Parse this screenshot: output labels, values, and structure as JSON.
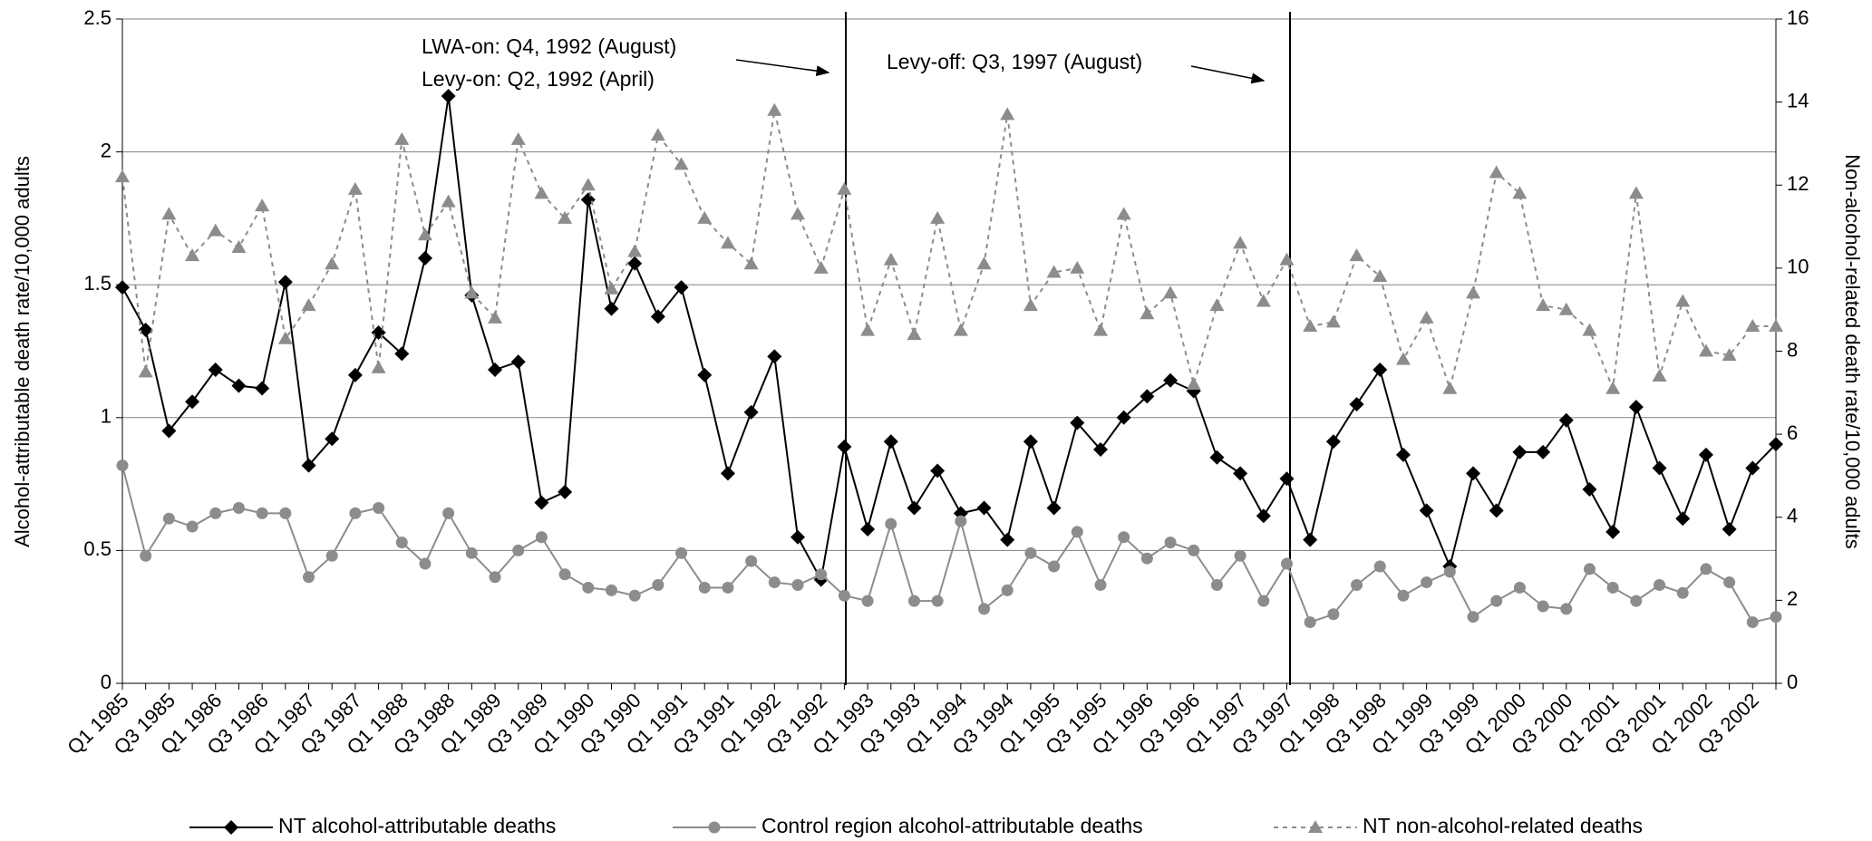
{
  "chart_data": {
    "type": "line",
    "y_label": "Alcohol-attributable death rate/10,000 adults",
    "y2_label": "Non-alcohol-related death rate/10,000 adults",
    "annotations": [
      "LWA-on: Q4, 1992 (August)",
      "Levy-on: Q2, 1992 (April)",
      "Levy-off: Q3, 1997 (August)"
    ],
    "categories": [
      "Q1 1985",
      null,
      "Q3 1985",
      null,
      "Q1 1986",
      null,
      "Q3 1986",
      null,
      "Q1 1987",
      null,
      "Q3 1987",
      null,
      "Q1 1988",
      null,
      "Q3 1988",
      null,
      "Q1 1989",
      null,
      "Q3 1989",
      null,
      "Q1 1990",
      null,
      "Q3 1990",
      null,
      "Q1 1991",
      null,
      "Q3 1991",
      null,
      "Q1 1992",
      null,
      "Q3 1992",
      null,
      "Q1 1993",
      null,
      "Q3 1993",
      null,
      "Q1 1994",
      null,
      "Q3 1994",
      null,
      "Q1 1995",
      null,
      "Q3 1995",
      null,
      "Q1 1996",
      null,
      "Q3 1996",
      null,
      "Q1 1997",
      null,
      "Q3 1997",
      null,
      "Q1 1998",
      null,
      "Q3 1998",
      null,
      "Q1 1999",
      null,
      "Q3 1999",
      null,
      "Q1 2000",
      null,
      "Q3 2000",
      null,
      "Q1 2001",
      null,
      "Q3 2001",
      null,
      "Q1 2002",
      null,
      "Q3 2002",
      null
    ],
    "series": [
      {
        "name": "NT alcohol-attributable deaths",
        "color": "#000000",
        "marker": "diamond",
        "line_style": "solid",
        "values": [
          1.49,
          1.33,
          0.95,
          1.06,
          1.18,
          1.12,
          1.11,
          1.51,
          0.82,
          0.92,
          1.16,
          1.32,
          1.24,
          1.6,
          2.21,
          1.46,
          1.18,
          1.21,
          0.68,
          0.72,
          1.82,
          1.41,
          1.58,
          1.38,
          1.49,
          1.16,
          0.79,
          1.02,
          1.23,
          0.55,
          0.39,
          0.89,
          0.58,
          0.91,
          0.66,
          0.8,
          0.64,
          0.66,
          0.54,
          0.91,
          0.66,
          0.98,
          0.88,
          1.0,
          1.08,
          1.14,
          1.1,
          0.85,
          0.79,
          0.63,
          0.77,
          0.54,
          0.91,
          1.05,
          1.18,
          0.86,
          0.65,
          0.44,
          0.79,
          0.65,
          0.87,
          0.87,
          0.99,
          0.73,
          0.57,
          1.04,
          0.81,
          0.62,
          0.86,
          0.58,
          0.81,
          0.9
        ]
      },
      {
        "name": "Control region alcohol-attributable deaths",
        "color": "#8c8c8c",
        "marker": "circle",
        "line_style": "solid",
        "values": [
          0.82,
          0.48,
          0.62,
          0.59,
          0.64,
          0.66,
          0.64,
          0.64,
          0.4,
          0.48,
          0.64,
          0.66,
          0.53,
          0.45,
          0.64,
          0.49,
          0.4,
          0.5,
          0.55,
          0.41,
          0.36,
          0.35,
          0.33,
          0.37,
          0.49,
          0.36,
          0.36,
          0.46,
          0.38,
          0.37,
          0.41,
          0.33,
          0.31,
          0.6,
          0.31,
          0.31,
          0.61,
          0.28,
          0.35,
          0.49,
          0.44,
          0.57,
          0.37,
          0.55,
          0.47,
          0.53,
          0.5,
          0.37,
          0.48,
          0.31,
          0.45,
          0.23,
          0.26,
          0.37,
          0.44,
          0.33,
          0.38,
          0.42,
          0.25,
          0.31,
          0.36,
          0.29,
          0.28,
          0.43,
          0.36,
          0.31,
          0.37,
          0.34,
          0.43,
          0.38,
          0.23,
          0.25
        ]
      },
      {
        "name": "NT non-alcohol-related deaths",
        "color": "#8c8c8c",
        "marker": "triangle",
        "line_style": "dotted",
        "axis": "y2",
        "values": [
          12.2,
          7.5,
          11.3,
          10.3,
          10.9,
          10.5,
          11.5,
          8.3,
          9.1,
          10.1,
          11.9,
          7.6,
          13.1,
          10.8,
          11.6,
          9.4,
          8.8,
          13.1,
          11.8,
          11.2,
          12.0,
          9.5,
          10.4,
          13.2,
          12.5,
          11.2,
          10.6,
          10.1,
          13.8,
          11.3,
          10.0,
          11.9,
          8.5,
          10.2,
          8.4,
          11.2,
          8.5,
          10.1,
          13.7,
          9.1,
          9.9,
          10.0,
          8.5,
          11.3,
          8.9,
          9.4,
          7.2,
          9.1,
          10.6,
          9.2,
          10.2,
          8.6,
          8.7,
          10.3,
          9.8,
          7.8,
          8.8,
          7.1,
          9.4,
          12.3,
          11.8,
          9.1,
          9.0,
          8.5,
          7.1,
          11.8,
          7.4,
          9.2,
          8.0,
          7.9,
          8.6,
          8.6
        ]
      }
    ],
    "ylim": [
      0,
      2.5
    ],
    "yticks": [
      0,
      0.5,
      1,
      1.5,
      2,
      2.5
    ],
    "y2lim": [
      0,
      16
    ],
    "y2ticks": [
      0,
      2,
      4,
      6,
      8,
      10,
      12,
      14,
      16
    ],
    "grid": true,
    "legend": "bottom"
  }
}
